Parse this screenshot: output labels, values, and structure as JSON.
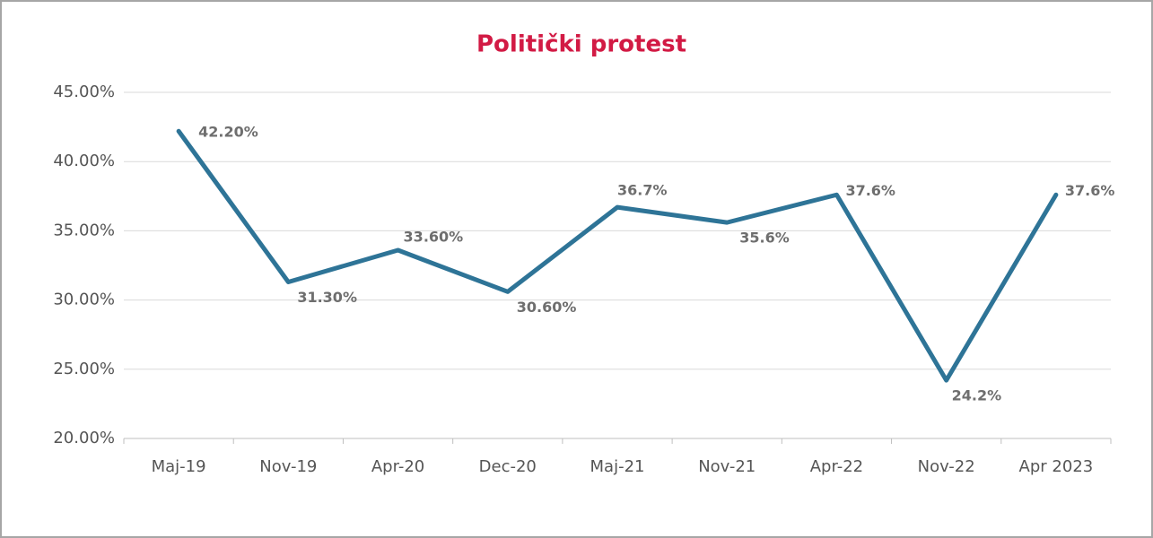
{
  "chart_data": {
    "type": "line",
    "title": "Politički protest",
    "categories": [
      "Maj-19",
      "Nov-19",
      "Apr-20",
      "Dec-20",
      "Maj-21",
      "Nov-21",
      "Apr-22",
      "Nov-22",
      "Apr 2023"
    ],
    "series": [
      {
        "color": "#2e7497",
        "values": [
          42.2,
          31.3,
          33.6,
          30.6,
          36.7,
          35.6,
          37.6,
          24.2,
          37.6
        ],
        "value_labels": [
          "42.20%",
          "31.30%",
          "33.60%",
          "30.60%",
          "36.7%",
          "35.6%",
          "37.6%",
          "24.2%",
          "37.6%"
        ]
      }
    ],
    "ylim": [
      20,
      45
    ],
    "yticks": [
      {
        "value": 20,
        "label": "20.00%"
      },
      {
        "value": 25,
        "label": "25.00%"
      },
      {
        "value": 30,
        "label": "30.00%"
      },
      {
        "value": 35,
        "label": "35.00%"
      },
      {
        "value": 40,
        "label": "40.00%"
      },
      {
        "value": 45,
        "label": "45.00%"
      }
    ],
    "grid": true
  }
}
